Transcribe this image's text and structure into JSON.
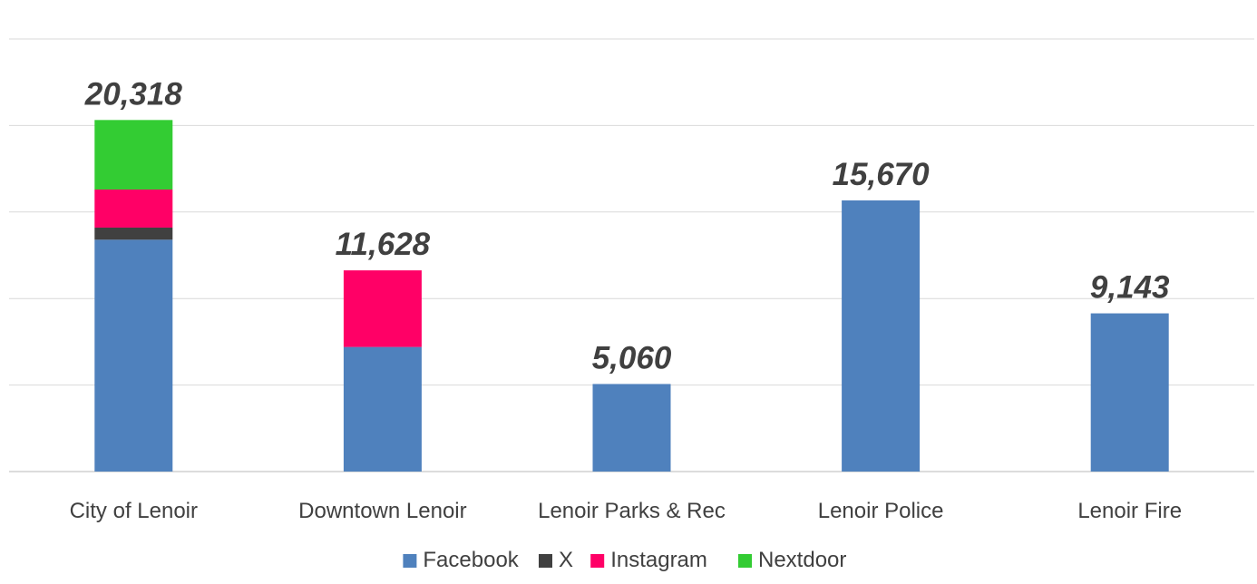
{
  "chart_data": {
    "type": "bar",
    "stacked": true,
    "categories": [
      "City of Lenoir",
      "Downtown Lenoir",
      "Lenoir Parks & Rec",
      "Lenoir Police",
      "Lenoir Fire"
    ],
    "series": [
      {
        "name": "Facebook",
        "color": "#4F81BD",
        "values": [
          13400,
          7200,
          5060,
          15670,
          9143
        ]
      },
      {
        "name": "X",
        "color": "#404040",
        "values": [
          700,
          0,
          0,
          0,
          0
        ]
      },
      {
        "name": "Instagram",
        "color": "#FF0066",
        "values": [
          2200,
          4428,
          0,
          0,
          0
        ]
      },
      {
        "name": "Nextdoor",
        "color": "#33CC33",
        "values": [
          4018,
          0,
          0,
          0,
          0
        ]
      }
    ],
    "totals": [
      "20,318",
      "11,628",
      "5,060",
      "15,670",
      "9,143"
    ],
    "ylim": [
      0,
      25000
    ],
    "gridlines": true,
    "legend_position": "bottom",
    "title": "",
    "xlabel": "",
    "ylabel": ""
  }
}
